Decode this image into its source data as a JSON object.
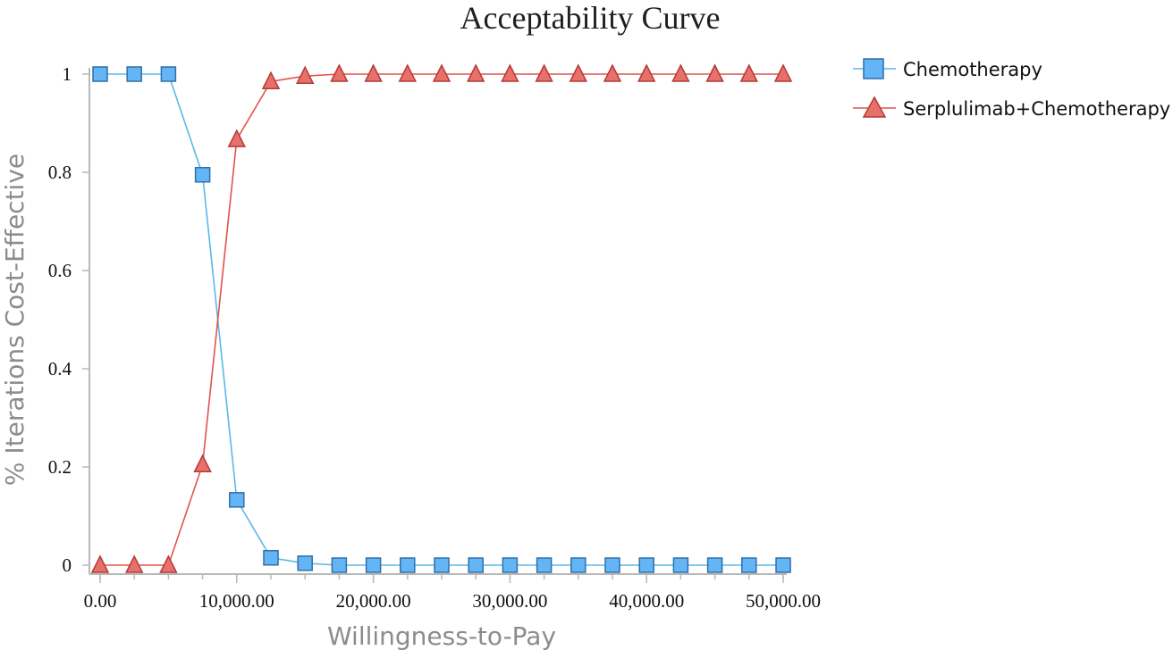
{
  "chart_data": {
    "type": "line",
    "title": "Acceptability Curve",
    "xlabel": "Willingness-to-Pay",
    "ylabel": "% Iterations Cost-Effective",
    "x": [
      0,
      2500,
      5000,
      7500,
      10000,
      12500,
      15000,
      17500,
      20000,
      22500,
      25000,
      27500,
      30000,
      32500,
      35000,
      37500,
      40000,
      42500,
      45000,
      47500,
      50000
    ],
    "xlim": [
      0,
      50000
    ],
    "ylim": [
      0,
      1
    ],
    "x_ticks": [
      0,
      10000,
      20000,
      30000,
      40000,
      50000
    ],
    "x_tick_labels": [
      "0.00",
      "10,000.00",
      "20,000.00",
      "30,000.00",
      "40,000.00",
      "50,000.00"
    ],
    "y_ticks": [
      0,
      0.2,
      0.4,
      0.6,
      0.8,
      1
    ],
    "y_tick_labels": [
      "0",
      "0.2",
      "0.4",
      "0.6",
      "0.8",
      "1"
    ],
    "grid": false,
    "legend_position": "top-right",
    "series": [
      {
        "name": "Chemotherapy",
        "marker": "square",
        "line_color": "#5bb8e8",
        "fill_color": "#64b5f6",
        "edge_color": "#2f6fa8",
        "values": [
          1,
          1,
          1,
          0.795,
          0.133,
          0.015,
          0.004,
          0,
          0,
          0,
          0,
          0,
          0,
          0,
          0,
          0,
          0,
          0,
          0,
          0,
          0
        ]
      },
      {
        "name": "Serplulimab+Chemotherapy",
        "marker": "triangle",
        "line_color": "#e0534e",
        "fill_color": "#e8706b",
        "edge_color": "#b33a36",
        "values": [
          0,
          0,
          0,
          0.205,
          0.867,
          0.985,
          0.996,
          1,
          1,
          1,
          1,
          1,
          1,
          1,
          1,
          1,
          1,
          1,
          1,
          1,
          1
        ]
      }
    ]
  }
}
